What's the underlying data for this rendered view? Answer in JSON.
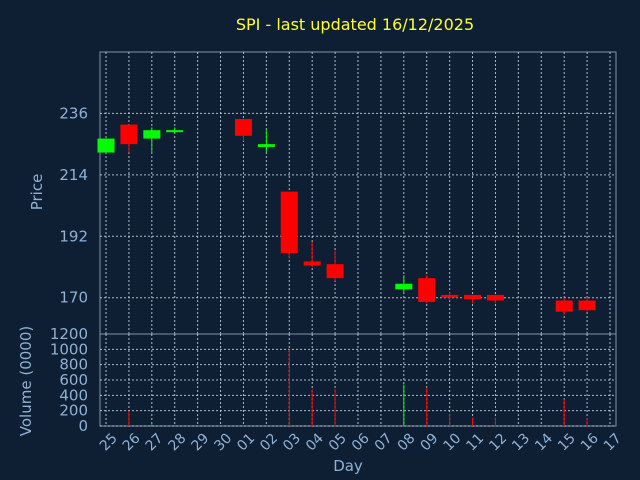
{
  "title": "SPI - last updated 16/12/2025",
  "ylabel_price": "Price",
  "ylabel_volume": "Volume (0000)",
  "xlabel": "Day",
  "colors": {
    "background": "#0e1f33",
    "up": "#00ff00",
    "down": "#ff0000",
    "grid": "#c8d3df",
    "text": "#8fb1d6",
    "title": "#ffff33"
  },
  "chart_data": [
    {
      "type": "candlestick",
      "title": "SPI - last updated 16/12/2025",
      "ylabel": "Price",
      "ylim": [
        157,
        258
      ],
      "yticks": [
        170,
        192,
        214,
        236
      ],
      "grid": true,
      "x": [
        "25",
        "26",
        "27",
        "28",
        "29",
        "30",
        "01",
        "02",
        "03",
        "04",
        "05",
        "06",
        "07",
        "08",
        "09",
        "10",
        "11",
        "12",
        "13",
        "14",
        "15",
        "16",
        "17"
      ],
      "candles": [
        {
          "x": "25",
          "open": 222,
          "high": 227,
          "low": 222,
          "close": 227
        },
        {
          "x": "26",
          "open": 232,
          "high": 232,
          "low": 222,
          "close": 225
        },
        {
          "x": "27",
          "open": 227,
          "high": 231,
          "low": 222,
          "close": 230
        },
        {
          "x": "28",
          "open": 229.5,
          "high": 231,
          "low": 229,
          "close": 230
        },
        {
          "x": "01",
          "open": 234,
          "high": 234,
          "low": 226,
          "close": 228
        },
        {
          "x": "02",
          "open": 224,
          "high": 230,
          "low": 222,
          "close": 225
        },
        {
          "x": "03",
          "open": 208,
          "high": 208,
          "low": 184,
          "close": 186
        },
        {
          "x": "04",
          "open": 183,
          "high": 190,
          "low": 181,
          "close": 181.5
        },
        {
          "x": "05",
          "open": 182,
          "high": 187,
          "low": 176,
          "close": 177
        },
        {
          "x": "08",
          "open": 173,
          "high": 178,
          "low": 172,
          "close": 175
        },
        {
          "x": "09",
          "open": 177,
          "high": 178,
          "low": 168,
          "close": 168.5
        },
        {
          "x": "10",
          "open": 171,
          "high": 172,
          "low": 169,
          "close": 170
        },
        {
          "x": "11",
          "open": 171,
          "high": 171,
          "low": 168,
          "close": 169.5
        },
        {
          "x": "12",
          "open": 171,
          "high": 171,
          "low": 168,
          "close": 169
        },
        {
          "x": "15",
          "open": 169,
          "high": 170,
          "low": 164,
          "close": 165
        },
        {
          "x": "16",
          "open": 169,
          "high": 170,
          "low": 165,
          "close": 165.5
        }
      ]
    },
    {
      "type": "bar",
      "ylabel": "Volume (0000)",
      "xlabel": "Day",
      "ylim": [
        0,
        1200
      ],
      "yticks": [
        0,
        200,
        400,
        600,
        800,
        1000,
        1200
      ],
      "grid": true,
      "volumes": [
        {
          "x": "26",
          "value": 200,
          "dir": "down"
        },
        {
          "x": "27",
          "value": 20,
          "dir": "up"
        },
        {
          "x": "28",
          "value": 10,
          "dir": "up"
        },
        {
          "x": "03",
          "value": 1000,
          "dir": "down"
        },
        {
          "x": "04",
          "value": 480,
          "dir": "down"
        },
        {
          "x": "05",
          "value": 480,
          "dir": "down"
        },
        {
          "x": "08",
          "value": 540,
          "dir": "up"
        },
        {
          "x": "09",
          "value": 500,
          "dir": "down"
        },
        {
          "x": "10",
          "value": 160,
          "dir": "down"
        },
        {
          "x": "11",
          "value": 110,
          "dir": "down"
        },
        {
          "x": "12",
          "value": 110,
          "dir": "down"
        },
        {
          "x": "15",
          "value": 350,
          "dir": "down"
        },
        {
          "x": "16",
          "value": 100,
          "dir": "down"
        }
      ]
    }
  ]
}
